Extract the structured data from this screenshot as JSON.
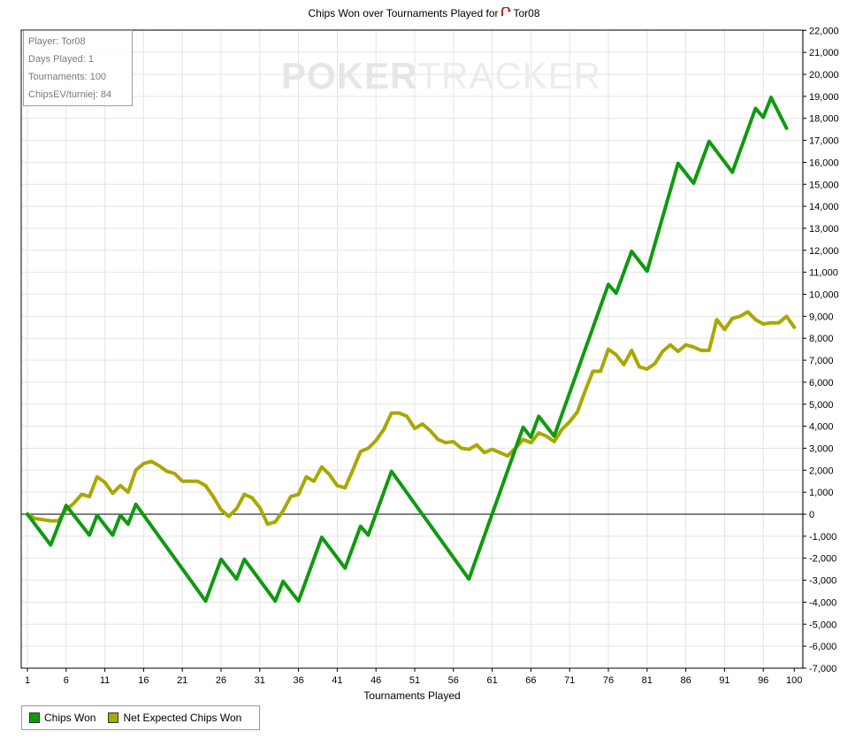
{
  "title": "Chips Won over Tournaments Played for",
  "player_name": "Tor08",
  "watermark": {
    "left": "POKER",
    "right": "TRACKER"
  },
  "infobox": {
    "player": "Player: Tor08",
    "days": "Days Played: 1",
    "tournaments": "Tournaments: 100",
    "chipsev": "ChipsEV/turniej: 84"
  },
  "legend": [
    {
      "label": "Chips Won",
      "color": "#0f9a0f"
    },
    {
      "label": "Net Expected Chips Won",
      "color": "#a8a800"
    }
  ],
  "chart_data": {
    "type": "line",
    "title": "Chips Won over Tournaments Played for Tor08",
    "xlabel": "Tournaments Played",
    "ylabel": "",
    "xlim": [
      0,
      100
    ],
    "ylim": [
      -7000,
      22000
    ],
    "xticks": [
      "1",
      "6",
      "11",
      "16",
      "21",
      "26",
      "31",
      "36",
      "41",
      "46",
      "51",
      "56",
      "61",
      "66",
      "71",
      "76",
      "81",
      "86",
      "91",
      "96",
      "100"
    ],
    "yticks": [
      "22,000",
      "21,000",
      "20,000",
      "19,000",
      "18,000",
      "17,000",
      "16,000",
      "15,000",
      "14,000",
      "13,000",
      "12,000",
      "11,000",
      "10,000",
      "9,000",
      "8,000",
      "7,000",
      "6,000",
      "5,000",
      "4,000",
      "3,000",
      "2,000",
      "1,000",
      "0",
      "-1,000",
      "-2,000",
      "-3,000",
      "-4,000",
      "-5,000",
      "-6,000",
      "-7,000"
    ],
    "grid": true,
    "legend_position": "bottom-left",
    "series": [
      {
        "name": "Chips Won",
        "color": "#0f9a0f",
        "x": [
          0,
          3,
          5,
          8,
          9,
          11,
          12,
          13,
          14,
          23,
          25,
          27,
          28,
          32,
          33,
          35,
          38,
          41,
          43,
          44,
          47,
          57,
          64,
          65,
          66,
          68,
          75,
          76,
          78,
          80,
          84,
          86,
          88,
          91,
          94,
          95,
          96,
          98
        ],
        "y": [
          0,
          -1400,
          400,
          -950,
          -50,
          -950,
          -50,
          -450,
          450,
          -3950,
          -2050,
          -2950,
          -2050,
          -3950,
          -3050,
          -3950,
          -1050,
          -2450,
          -550,
          -950,
          1950,
          -2950,
          3950,
          3500,
          4450,
          3550,
          10450,
          10050,
          11950,
          11050,
          15950,
          15050,
          16950,
          15550,
          18450,
          18050,
          18950,
          17550
        ]
      },
      {
        "name": "Net Expected Chips Won",
        "color": "#a8a800",
        "x": [
          0,
          1,
          2,
          3,
          4,
          5,
          6,
          7,
          8,
          9,
          10,
          11,
          12,
          13,
          14,
          15,
          16,
          17,
          18,
          19,
          20,
          21,
          22,
          23,
          24,
          25,
          26,
          27,
          28,
          29,
          30,
          31,
          32,
          33,
          34,
          35,
          36,
          37,
          38,
          39,
          40,
          41,
          42,
          43,
          44,
          45,
          46,
          47,
          48,
          49,
          50,
          51,
          52,
          53,
          54,
          55,
          56,
          57,
          58,
          59,
          60,
          61,
          62,
          63,
          64,
          65,
          66,
          67,
          68,
          69,
          70,
          71,
          72,
          73,
          74,
          75,
          76,
          77,
          78,
          79,
          80,
          81,
          82,
          83,
          84,
          85,
          86,
          87,
          88,
          89,
          90,
          91,
          92,
          93,
          94,
          95,
          96,
          97,
          98,
          99
        ],
        "y": [
          0,
          -200,
          -250,
          -300,
          -300,
          200,
          500,
          900,
          800,
          1700,
          1450,
          950,
          1300,
          1000,
          2000,
          2300,
          2400,
          2200,
          1950,
          1850,
          1500,
          1500,
          1500,
          1300,
          800,
          200,
          -100,
          250,
          900,
          750,
          300,
          -450,
          -350,
          150,
          800,
          900,
          1700,
          1500,
          2150,
          1800,
          1300,
          1200,
          2000,
          2850,
          3000,
          3350,
          3850,
          4600,
          4600,
          4450,
          3900,
          4100,
          3800,
          3400,
          3250,
          3300,
          3000,
          2950,
          3150,
          2800,
          2950,
          2800,
          2650,
          3000,
          3400,
          3250,
          3700,
          3550,
          3300,
          3850,
          4200,
          4650,
          5600,
          6500,
          6500,
          7500,
          7250,
          6800,
          7450,
          6700,
          6600,
          6850,
          7400,
          7700,
          7400,
          7700,
          7600,
          7450,
          7450,
          8850,
          8400,
          8900,
          9000,
          9200,
          8850,
          8650,
          8700,
          8700,
          9000,
          8500
        ]
      }
    ]
  }
}
